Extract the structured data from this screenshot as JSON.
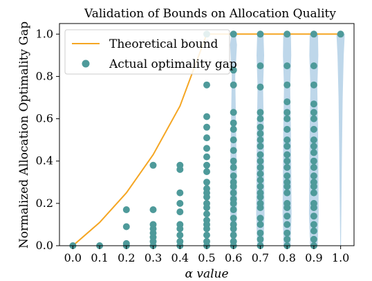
{
  "chart_data": {
    "type": "scatter",
    "title": "Validation of Bounds on Allocation Quality",
    "xlabel": "α value",
    "ylabel": "Normalized Allocation Optimality Gap",
    "xlim": [
      -0.05,
      1.05
    ],
    "ylim": [
      0.0,
      1.05
    ],
    "x_ticks": [
      "0.0",
      "0.1",
      "0.2",
      "0.3",
      "0.4",
      "0.5",
      "0.6",
      "0.7",
      "0.8",
      "0.9",
      "1.0"
    ],
    "y_ticks": [
      "0.0",
      "0.2",
      "0.4",
      "0.6",
      "0.8",
      "1.0"
    ],
    "grid": false,
    "legend_position": "top-left",
    "series": [
      {
        "name": "Theoretical bound",
        "kind": "line",
        "color": "#f5a623",
        "x": [
          0.0,
          0.1,
          0.2,
          0.3,
          0.4,
          0.5,
          0.6,
          0.7,
          0.8,
          0.9,
          1.0
        ],
        "y": [
          0.0,
          0.11,
          0.25,
          0.43,
          0.66,
          1.0,
          1.0,
          1.0,
          1.0,
          1.0,
          1.0
        ]
      },
      {
        "name": "Actual optimality gap",
        "kind": "scatter",
        "color": "#4e9a9a",
        "points": [
          [
            0.0,
            0.0
          ],
          [
            0.1,
            0.0
          ],
          [
            0.2,
            0.0
          ],
          [
            0.2,
            0.01
          ],
          [
            0.2,
            0.09
          ],
          [
            0.2,
            0.17
          ],
          [
            0.3,
            0.0
          ],
          [
            0.3,
            0.02
          ],
          [
            0.3,
            0.04
          ],
          [
            0.3,
            0.06
          ],
          [
            0.3,
            0.08
          ],
          [
            0.3,
            0.1
          ],
          [
            0.3,
            0.17
          ],
          [
            0.3,
            0.38
          ],
          [
            0.4,
            0.0
          ],
          [
            0.4,
            0.02
          ],
          [
            0.4,
            0.05
          ],
          [
            0.4,
            0.08
          ],
          [
            0.4,
            0.1
          ],
          [
            0.4,
            0.16
          ],
          [
            0.4,
            0.2
          ],
          [
            0.4,
            0.25
          ],
          [
            0.4,
            0.36
          ],
          [
            0.4,
            0.38
          ],
          [
            0.5,
            0.0
          ],
          [
            0.5,
            0.02
          ],
          [
            0.5,
            0.05
          ],
          [
            0.5,
            0.08
          ],
          [
            0.5,
            0.1
          ],
          [
            0.5,
            0.12
          ],
          [
            0.5,
            0.15
          ],
          [
            0.5,
            0.18
          ],
          [
            0.5,
            0.2
          ],
          [
            0.5,
            0.23
          ],
          [
            0.5,
            0.25
          ],
          [
            0.5,
            0.27
          ],
          [
            0.5,
            0.3
          ],
          [
            0.5,
            0.35
          ],
          [
            0.5,
            0.38
          ],
          [
            0.5,
            0.42
          ],
          [
            0.5,
            0.46
          ],
          [
            0.5,
            0.51
          ],
          [
            0.5,
            0.56
          ],
          [
            0.5,
            0.61
          ],
          [
            0.5,
            0.76
          ],
          [
            0.5,
            1.0
          ],
          [
            0.6,
            0.0
          ],
          [
            0.6,
            0.02
          ],
          [
            0.6,
            0.05
          ],
          [
            0.6,
            0.08
          ],
          [
            0.6,
            0.1
          ],
          [
            0.6,
            0.13
          ],
          [
            0.6,
            0.17
          ],
          [
            0.6,
            0.2
          ],
          [
            0.6,
            0.22
          ],
          [
            0.6,
            0.25
          ],
          [
            0.6,
            0.28
          ],
          [
            0.6,
            0.3
          ],
          [
            0.6,
            0.33
          ],
          [
            0.6,
            0.37
          ],
          [
            0.6,
            0.4
          ],
          [
            0.6,
            0.45
          ],
          [
            0.6,
            0.5
          ],
          [
            0.6,
            0.55
          ],
          [
            0.6,
            0.58
          ],
          [
            0.6,
            0.63
          ],
          [
            0.6,
            0.76
          ],
          [
            0.6,
            0.83
          ],
          [
            0.6,
            1.0
          ],
          [
            0.7,
            0.0
          ],
          [
            0.7,
            0.03
          ],
          [
            0.7,
            0.06
          ],
          [
            0.7,
            0.1
          ],
          [
            0.7,
            0.13
          ],
          [
            0.7,
            0.18
          ],
          [
            0.7,
            0.2
          ],
          [
            0.7,
            0.23
          ],
          [
            0.7,
            0.25
          ],
          [
            0.7,
            0.28
          ],
          [
            0.7,
            0.31
          ],
          [
            0.7,
            0.34
          ],
          [
            0.7,
            0.37
          ],
          [
            0.7,
            0.4
          ],
          [
            0.7,
            0.43
          ],
          [
            0.7,
            0.47
          ],
          [
            0.7,
            0.5
          ],
          [
            0.7,
            0.53
          ],
          [
            0.7,
            0.56
          ],
          [
            0.7,
            0.6
          ],
          [
            0.7,
            0.63
          ],
          [
            0.7,
            0.75
          ],
          [
            0.7,
            0.85
          ],
          [
            0.7,
            1.0
          ],
          [
            0.8,
            0.0
          ],
          [
            0.8,
            0.03
          ],
          [
            0.8,
            0.06
          ],
          [
            0.8,
            0.1
          ],
          [
            0.8,
            0.14
          ],
          [
            0.8,
            0.18
          ],
          [
            0.8,
            0.2
          ],
          [
            0.8,
            0.25
          ],
          [
            0.8,
            0.28
          ],
          [
            0.8,
            0.3
          ],
          [
            0.8,
            0.33
          ],
          [
            0.8,
            0.37
          ],
          [
            0.8,
            0.4
          ],
          [
            0.8,
            0.43
          ],
          [
            0.8,
            0.47
          ],
          [
            0.8,
            0.5
          ],
          [
            0.8,
            0.55
          ],
          [
            0.8,
            0.6
          ],
          [
            0.8,
            0.63
          ],
          [
            0.8,
            0.68
          ],
          [
            0.8,
            0.76
          ],
          [
            0.8,
            0.85
          ],
          [
            0.8,
            1.0
          ],
          [
            0.9,
            0.0
          ],
          [
            0.9,
            0.03
          ],
          [
            0.9,
            0.07
          ],
          [
            0.9,
            0.1
          ],
          [
            0.9,
            0.14
          ],
          [
            0.9,
            0.18
          ],
          [
            0.9,
            0.2
          ],
          [
            0.9,
            0.25
          ],
          [
            0.9,
            0.28
          ],
          [
            0.9,
            0.3
          ],
          [
            0.9,
            0.33
          ],
          [
            0.9,
            0.37
          ],
          [
            0.9,
            0.4
          ],
          [
            0.9,
            0.44
          ],
          [
            0.9,
            0.47
          ],
          [
            0.9,
            0.5
          ],
          [
            0.9,
            0.55
          ],
          [
            0.9,
            0.6
          ],
          [
            0.9,
            0.63
          ],
          [
            0.9,
            0.67
          ],
          [
            0.9,
            0.76
          ],
          [
            0.9,
            0.85
          ],
          [
            0.9,
            1.0
          ],
          [
            1.0,
            1.0
          ]
        ]
      }
    ],
    "violins": {
      "color": "#b7d3e8",
      "shapes": [
        {
          "x": 0.6,
          "profile": [
            [
              0.0,
              0.35
            ],
            [
              0.2,
              0.5
            ],
            [
              0.4,
              0.45
            ],
            [
              0.6,
              0.35
            ],
            [
              0.8,
              0.25
            ],
            [
              0.95,
              0.5
            ],
            [
              1.0,
              0.3
            ]
          ]
        },
        {
          "x": 0.7,
          "profile": [
            [
              0.0,
              0.45
            ],
            [
              0.15,
              0.6
            ],
            [
              0.35,
              0.55
            ],
            [
              0.55,
              0.5
            ],
            [
              0.75,
              0.4
            ],
            [
              0.9,
              0.55
            ],
            [
              1.0,
              0.45
            ]
          ]
        },
        {
          "x": 0.8,
          "profile": [
            [
              0.0,
              0.5
            ],
            [
              0.15,
              0.65
            ],
            [
              0.35,
              0.6
            ],
            [
              0.55,
              0.55
            ],
            [
              0.75,
              0.45
            ],
            [
              0.9,
              0.6
            ],
            [
              1.0,
              0.55
            ]
          ]
        },
        {
          "x": 0.9,
          "profile": [
            [
              0.0,
              0.55
            ],
            [
              0.15,
              0.7
            ],
            [
              0.35,
              0.65
            ],
            [
              0.55,
              0.6
            ],
            [
              0.75,
              0.5
            ],
            [
              0.9,
              0.65
            ],
            [
              1.0,
              0.6
            ]
          ]
        },
        {
          "x": 1.0,
          "profile": [
            [
              0.0,
              0.05
            ],
            [
              0.2,
              0.12
            ],
            [
              0.45,
              0.2
            ],
            [
              0.7,
              0.3
            ],
            [
              0.9,
              0.45
            ],
            [
              1.0,
              0.6
            ]
          ]
        }
      ]
    }
  }
}
